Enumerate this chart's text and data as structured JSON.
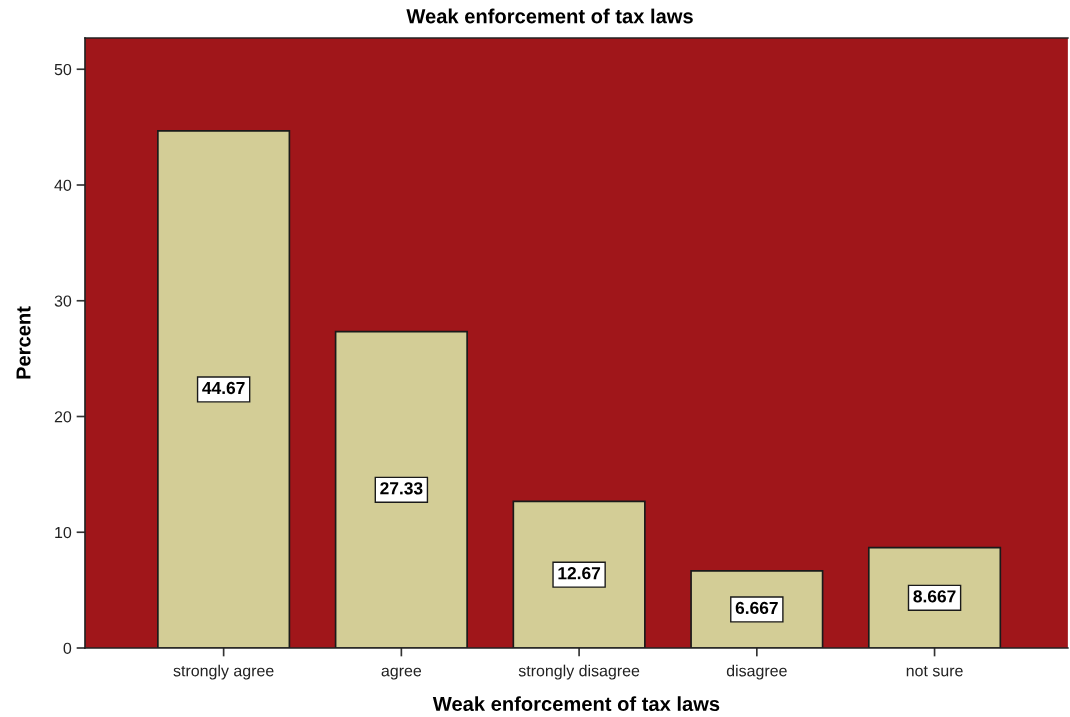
{
  "chart_data": {
    "type": "bar",
    "title": "Weak enforcement of tax laws",
    "xlabel": "Weak enforcement of tax laws",
    "ylabel": "Percent",
    "categories": [
      "strongly agree",
      "agree",
      "strongly disagree",
      "disagree",
      "not sure"
    ],
    "values": [
      44.67,
      27.33,
      12.67,
      6.667,
      8.667
    ],
    "color": "#d3cd96",
    "ylim": [
      0,
      52.7
    ],
    "yticks": [
      0,
      10,
      20,
      30,
      40,
      50
    ],
    "data_labels": true,
    "grid": false,
    "legend": false
  }
}
